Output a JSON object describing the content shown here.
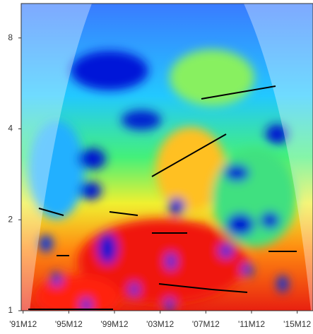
{
  "chart_data": {
    "type": "heatmap",
    "xlim": [
      1991.75,
      2017.3
    ],
    "xticks": [
      {
        "value": 1991.917,
        "label": "'91M12"
      },
      {
        "value": 1995.917,
        "label": "'95M12"
      },
      {
        "value": 1999.917,
        "label": "'99M12"
      },
      {
        "value": 2003.917,
        "label": "'03M12"
      },
      {
        "value": 2007.917,
        "label": "'07M12"
      },
      {
        "value": 2011.917,
        "label": "'11M12"
      },
      {
        "value": 2015.917,
        "label": "'15M12"
      }
    ],
    "ylim": [
      1,
      10.4
    ],
    "yticks": [
      1,
      2,
      4,
      8
    ],
    "log_y": true
  }
}
